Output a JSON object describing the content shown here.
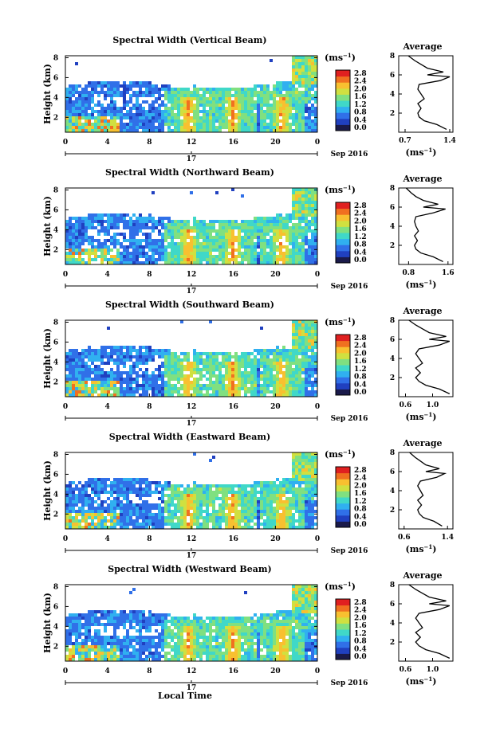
{
  "figure": {
    "xlabel": "Local Time",
    "date_label": "Sep 2016",
    "day_label": "17",
    "ylabel": "Height (km)",
    "colorbar_unit": "(ms",
    "colorbar_unit_sup": "−1",
    "colorbar_unit_close": ")",
    "avg_title": "Average",
    "avg_unit": "(ms",
    "avg_unit_sup": "−1",
    "avg_unit_close": ")"
  },
  "colorbar": {
    "ticks": [
      "2.8",
      "2.4",
      "2.0",
      "1.6",
      "1.2",
      "0.8",
      "0.4",
      "0.0"
    ],
    "colors": [
      "#1a1a4a",
      "#2040c0",
      "#3070e8",
      "#30b0f0",
      "#40d8c8",
      "#80e080",
      "#d0e040",
      "#f8c030",
      "#f07020",
      "#e02020"
    ]
  },
  "chart_data": [
    {
      "type": "heatmap",
      "title": "Spectral Width (Vertical Beam)",
      "x_ticks": [
        "0",
        "4",
        "8",
        "12",
        "16",
        "20",
        "0"
      ],
      "y_ticks": [
        "8",
        "6",
        "4",
        "2"
      ],
      "xlim": [
        0,
        24
      ],
      "ylim": [
        0.5,
        8.2
      ],
      "avg": {
        "type": "line",
        "title": "Average",
        "x_ticks": [
          "0.7",
          "1.4"
        ],
        "xlim": [
          0.6,
          1.45
        ],
        "y_ticks": [
          "8",
          "6",
          "4",
          "2"
        ],
        "ylim": [
          0,
          8
        ],
        "height": [
          0.3,
          0.8,
          1.2,
          1.6,
          2.0,
          2.5,
          3.0,
          3.5,
          4.0,
          4.5,
          5.0,
          5.4,
          5.8,
          6.0,
          6.3,
          6.7,
          7.1,
          7.5,
          8.0
        ],
        "value": [
          1.35,
          1.2,
          1.0,
          0.92,
          0.9,
          0.95,
          0.9,
          1.0,
          0.95,
          0.9,
          0.92,
          1.25,
          1.4,
          1.05,
          1.3,
          1.05,
          0.95,
          0.85,
          0.75
        ]
      }
    },
    {
      "type": "heatmap",
      "title": "Spectral Width (Northward Beam)",
      "x_ticks": [
        "0",
        "4",
        "8",
        "12",
        "16",
        "20",
        "0"
      ],
      "y_ticks": [
        "8",
        "6",
        "4",
        "2"
      ],
      "xlim": [
        0,
        24
      ],
      "ylim": [
        0.5,
        8.2
      ],
      "avg": {
        "type": "line",
        "title": "Average",
        "x_ticks": [
          "0.8",
          "1.6"
        ],
        "xlim": [
          0.6,
          1.7
        ],
        "y_ticks": [
          "8",
          "6",
          "4",
          "2"
        ],
        "ylim": [
          0,
          8
        ],
        "height": [
          0.3,
          0.8,
          1.2,
          1.6,
          2.0,
          2.5,
          3.0,
          3.5,
          4.0,
          4.5,
          5.0,
          5.4,
          5.8,
          6.0,
          6.3,
          6.7,
          7.1,
          7.5,
          8.0
        ],
        "value": [
          1.5,
          1.3,
          1.05,
          0.95,
          0.92,
          0.98,
          0.92,
          1.0,
          0.95,
          0.92,
          0.95,
          1.3,
          1.55,
          1.1,
          1.4,
          1.1,
          0.95,
          0.85,
          0.75
        ]
      }
    },
    {
      "type": "heatmap",
      "title": "Spectral Width (Southward Beam)",
      "x_ticks": [
        "0",
        "4",
        "8",
        "12",
        "16",
        "20",
        "0"
      ],
      "y_ticks": [
        "8",
        "6",
        "4",
        "2"
      ],
      "xlim": [
        0,
        24
      ],
      "ylim": [
        0.5,
        8.2
      ],
      "avg": {
        "type": "line",
        "title": "Average",
        "x_ticks": [
          "0.6",
          "1.0"
        ],
        "xlim": [
          0.5,
          1.3
        ],
        "y_ticks": [
          "8",
          "6",
          "4",
          "2"
        ],
        "ylim": [
          0,
          8
        ],
        "height": [
          0.3,
          0.8,
          1.2,
          1.6,
          2.0,
          2.5,
          3.0,
          3.5,
          4.0,
          4.5,
          5.0,
          5.4,
          5.8,
          6.0,
          6.3,
          6.7,
          7.1,
          7.5,
          8.0
        ],
        "value": [
          1.25,
          1.1,
          0.9,
          0.8,
          0.75,
          0.82,
          0.75,
          0.85,
          0.8,
          0.75,
          0.8,
          1.1,
          1.25,
          0.95,
          1.2,
          0.95,
          0.85,
          0.75,
          0.65
        ]
      }
    },
    {
      "type": "heatmap",
      "title": "Spectral Width (Eastward Beam)",
      "x_ticks": [
        "0",
        "4",
        "8",
        "12",
        "16",
        "20",
        "0"
      ],
      "y_ticks": [
        "8",
        "6",
        "4",
        "2"
      ],
      "xlim": [
        0,
        24
      ],
      "ylim": [
        0.5,
        8.2
      ],
      "avg": {
        "type": "line",
        "title": "Average",
        "x_ticks": [
          "0.6",
          "1.4"
        ],
        "xlim": [
          0.5,
          1.5
        ],
        "y_ticks": [
          "8",
          "6",
          "4",
          "2"
        ],
        "ylim": [
          0,
          8
        ],
        "height": [
          0.3,
          0.8,
          1.2,
          1.6,
          2.0,
          2.5,
          3.0,
          3.5,
          4.0,
          4.5,
          5.0,
          5.4,
          5.8,
          6.0,
          6.3,
          6.7,
          7.1,
          7.5,
          8.0
        ],
        "value": [
          1.3,
          1.15,
          0.95,
          0.88,
          0.85,
          0.92,
          0.85,
          0.95,
          0.9,
          0.85,
          0.9,
          1.2,
          1.35,
          1.0,
          1.25,
          1.0,
          0.9,
          0.8,
          0.7
        ]
      }
    },
    {
      "type": "heatmap",
      "title": "Spectral Width (Westward Beam)",
      "x_ticks": [
        "0",
        "4",
        "8",
        "12",
        "16",
        "20",
        "0"
      ],
      "y_ticks": [
        "8",
        "6",
        "4",
        "2"
      ],
      "xlim": [
        0,
        24
      ],
      "ylim": [
        0.5,
        8.2
      ],
      "avg": {
        "type": "line",
        "title": "Average",
        "x_ticks": [
          "0.6",
          "1.0"
        ],
        "xlim": [
          0.5,
          1.3
        ],
        "y_ticks": [
          "8",
          "6",
          "4",
          "2"
        ],
        "ylim": [
          0,
          8
        ],
        "height": [
          0.3,
          0.8,
          1.2,
          1.6,
          2.0,
          2.5,
          3.0,
          3.5,
          4.0,
          4.5,
          5.0,
          5.4,
          5.8,
          6.0,
          6.3,
          6.7,
          7.1,
          7.5,
          8.0
        ],
        "value": [
          1.25,
          1.1,
          0.9,
          0.8,
          0.75,
          0.82,
          0.75,
          0.85,
          0.8,
          0.75,
          0.8,
          1.1,
          1.25,
          0.95,
          1.2,
          0.95,
          0.85,
          0.75,
          0.65
        ]
      }
    }
  ]
}
